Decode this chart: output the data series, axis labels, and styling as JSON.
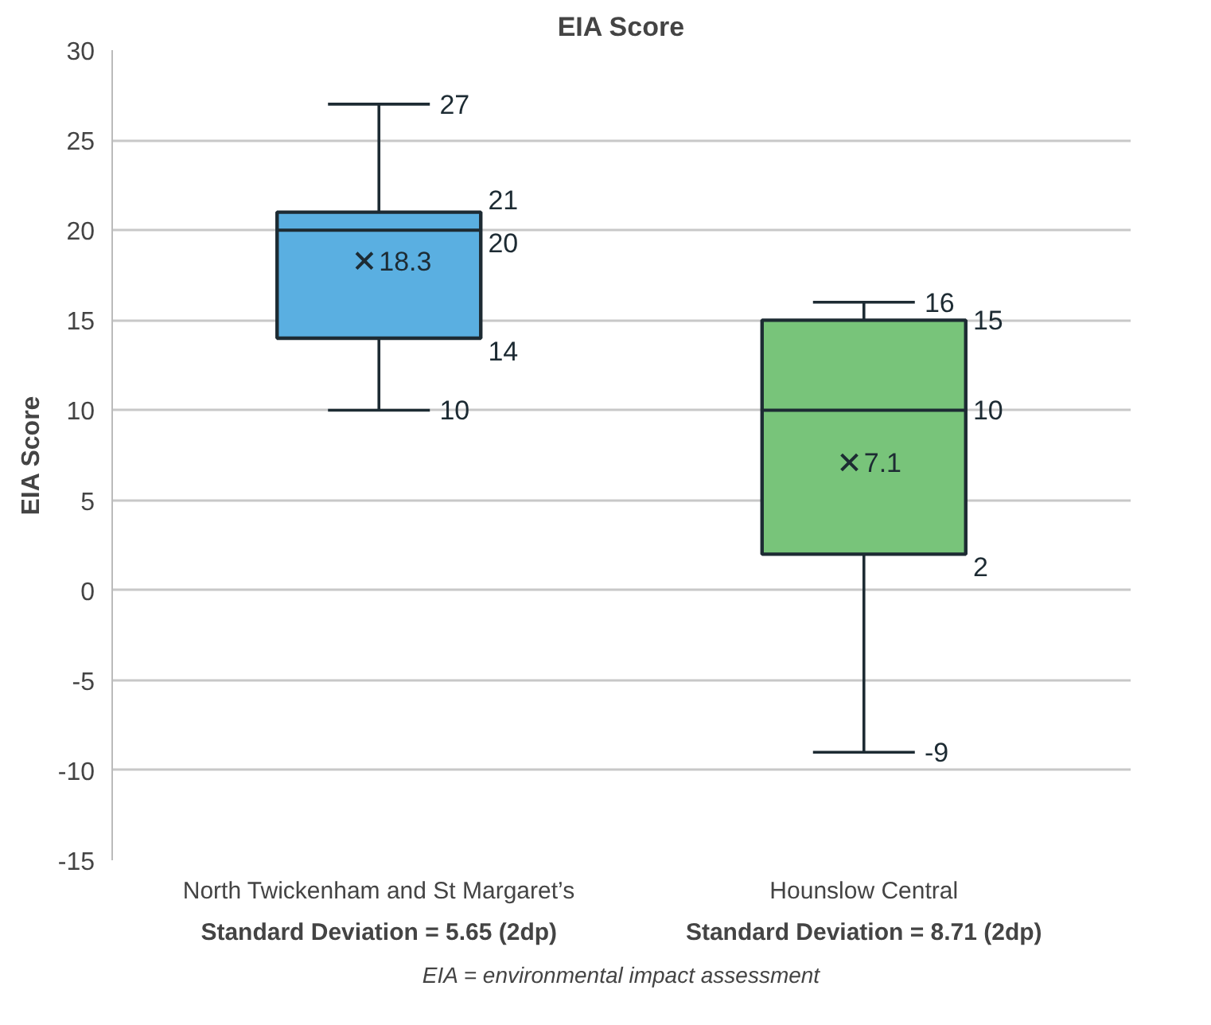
{
  "chart_data": {
    "type": "box",
    "title": "EIA Score",
    "ylabel": "EIA Score",
    "categories": [
      "North Twickenham and St Margaret’s",
      "Hounslow Central"
    ],
    "boxes": [
      {
        "low": 10,
        "q1": 14,
        "median": 20,
        "q3": 21,
        "high": 27,
        "mean": 18.3
      },
      {
        "low": -9,
        "q1": 2,
        "median": 10,
        "q3": 15,
        "high": 16,
        "mean": 7.1
      }
    ],
    "colors": [
      "#5aafe1",
      "#78c47a"
    ],
    "ylim": [
      -15,
      30
    ],
    "yticks": [
      -15,
      -10,
      -5,
      0,
      5,
      10,
      15,
      20,
      25,
      30
    ],
    "grid": "y",
    "marker": "cross",
    "annotations": [
      "Standard Deviation = 5.65 (2dp)",
      "Standard Deviation = 8.71 (2dp)",
      "EIA = environmental impact assessment",
      "21",
      "20",
      "18.3",
      "14",
      "15",
      "10",
      "7.1",
      "2",
      {
        "text": "27",
        "x": "North Twickenham and St Margaret’s",
        "y": 27
      },
      {
        "text": "10",
        "x": "North Twickenham and St Margaret’s",
        "y": 10
      },
      {
        "text": "16",
        "x": "Hounslow Central",
        "y": 16
      },
      {
        "text": "-9",
        "x": "Hounslow Central",
        "y": -9
      }
    ]
  }
}
